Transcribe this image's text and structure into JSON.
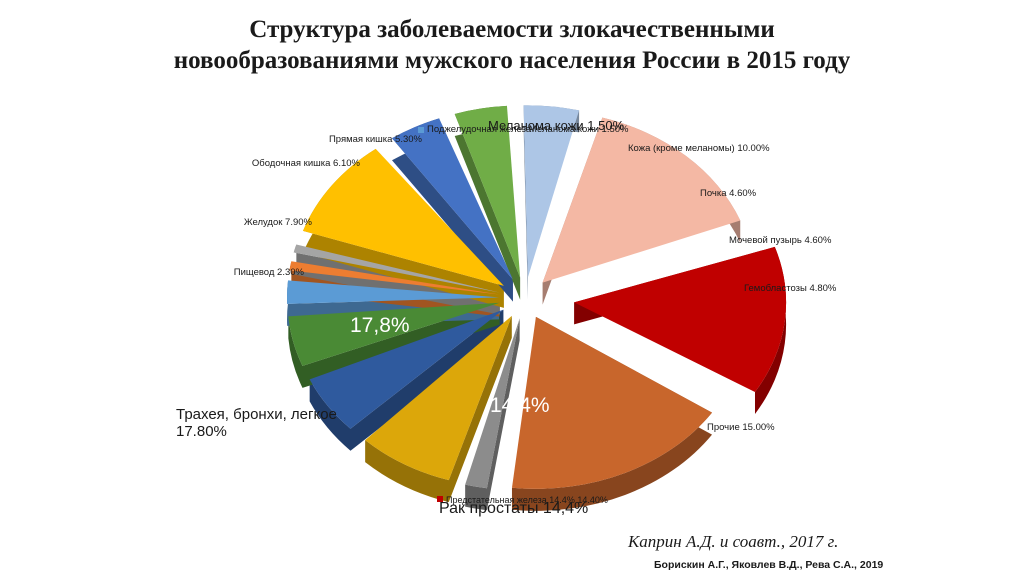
{
  "slide": {
    "title_line1": "Структура заболеваемости злокачественными",
    "title_line2": "новообразованиями мужского населения России в 2015 году",
    "citation": "Каприн А.Д. и соавт., 2017 г.",
    "authors": "Борискин А.Г., Яковлев В.Д., Рева С.А., 2019"
  },
  "callouts": {
    "lung": "Трахея, бронхи, легкое",
    "lung_value": "17.80%",
    "lung_inside": "17,8%",
    "prostate_inside": "14,4%",
    "prostate": "Рак простаты 14,4%",
    "melanoma_overlap": "Меланома кожи 1.50%"
  },
  "chart_data": {
    "type": "pie",
    "style": "3d exploded",
    "legend": "none",
    "slices": [
      {
        "name": "Предстательная железа 14.4%",
        "label": "Предстательная железа 14.4% 14.40%",
        "value": 14.4,
        "color": "#c00000"
      },
      {
        "name": "Трахея, бронхи, легкое",
        "label": "Трахея, бронхи, легкое 17.80%",
        "value": 17.8,
        "color": "#c8662c"
      },
      {
        "name": "Пищевод",
        "label": "Пищевод 2.30%",
        "value": 2.3,
        "color": "#8c8c8c"
      },
      {
        "name": "Желудок",
        "label": "Желудок 7.90%",
        "value": 7.9,
        "color": "#dca70a"
      },
      {
        "name": "Ободочная кишка",
        "label": "Ободочная кишка 6.10%",
        "value": 6.1,
        "color": "#2f5a9e"
      },
      {
        "name": "Прямая кишка",
        "label": "Прямая кишка 5.30%",
        "value": 5.3,
        "color": "#4a8a35"
      },
      {
        "name": "Поджелудочная железа",
        "label": "Поджелудочная железа",
        "value": 2.8,
        "color": "#5b9bd5"
      },
      {
        "name": "Меланома кожи",
        "label": "Меланома кожи 1.50%",
        "value": 1.5,
        "color": "#ed7d31"
      },
      {
        "name": "",
        "label": "",
        "value": 1.4,
        "color": "#a5a5a5"
      },
      {
        "name": "Кожа (кроме меланомы)",
        "label": "Кожа (кроме меланомы) 10.00%",
        "value": 10.0,
        "color": "#ffc000"
      },
      {
        "name": "Почка",
        "label": "Почка 4.60%",
        "value": 4.6,
        "color": "#4472c4"
      },
      {
        "name": "Мочевой пузырь",
        "label": "Мочевой пузырь 4.60%",
        "value": 4.6,
        "color": "#70ad47"
      },
      {
        "name": "Гемобластозы",
        "label": "Гемобластозы 4.80%",
        "value": 4.8,
        "color": "#adc6e6"
      },
      {
        "name": "Прочие",
        "label": "Прочие 15.00%",
        "value": 15.0,
        "color": "#f4b8a4"
      }
    ]
  }
}
